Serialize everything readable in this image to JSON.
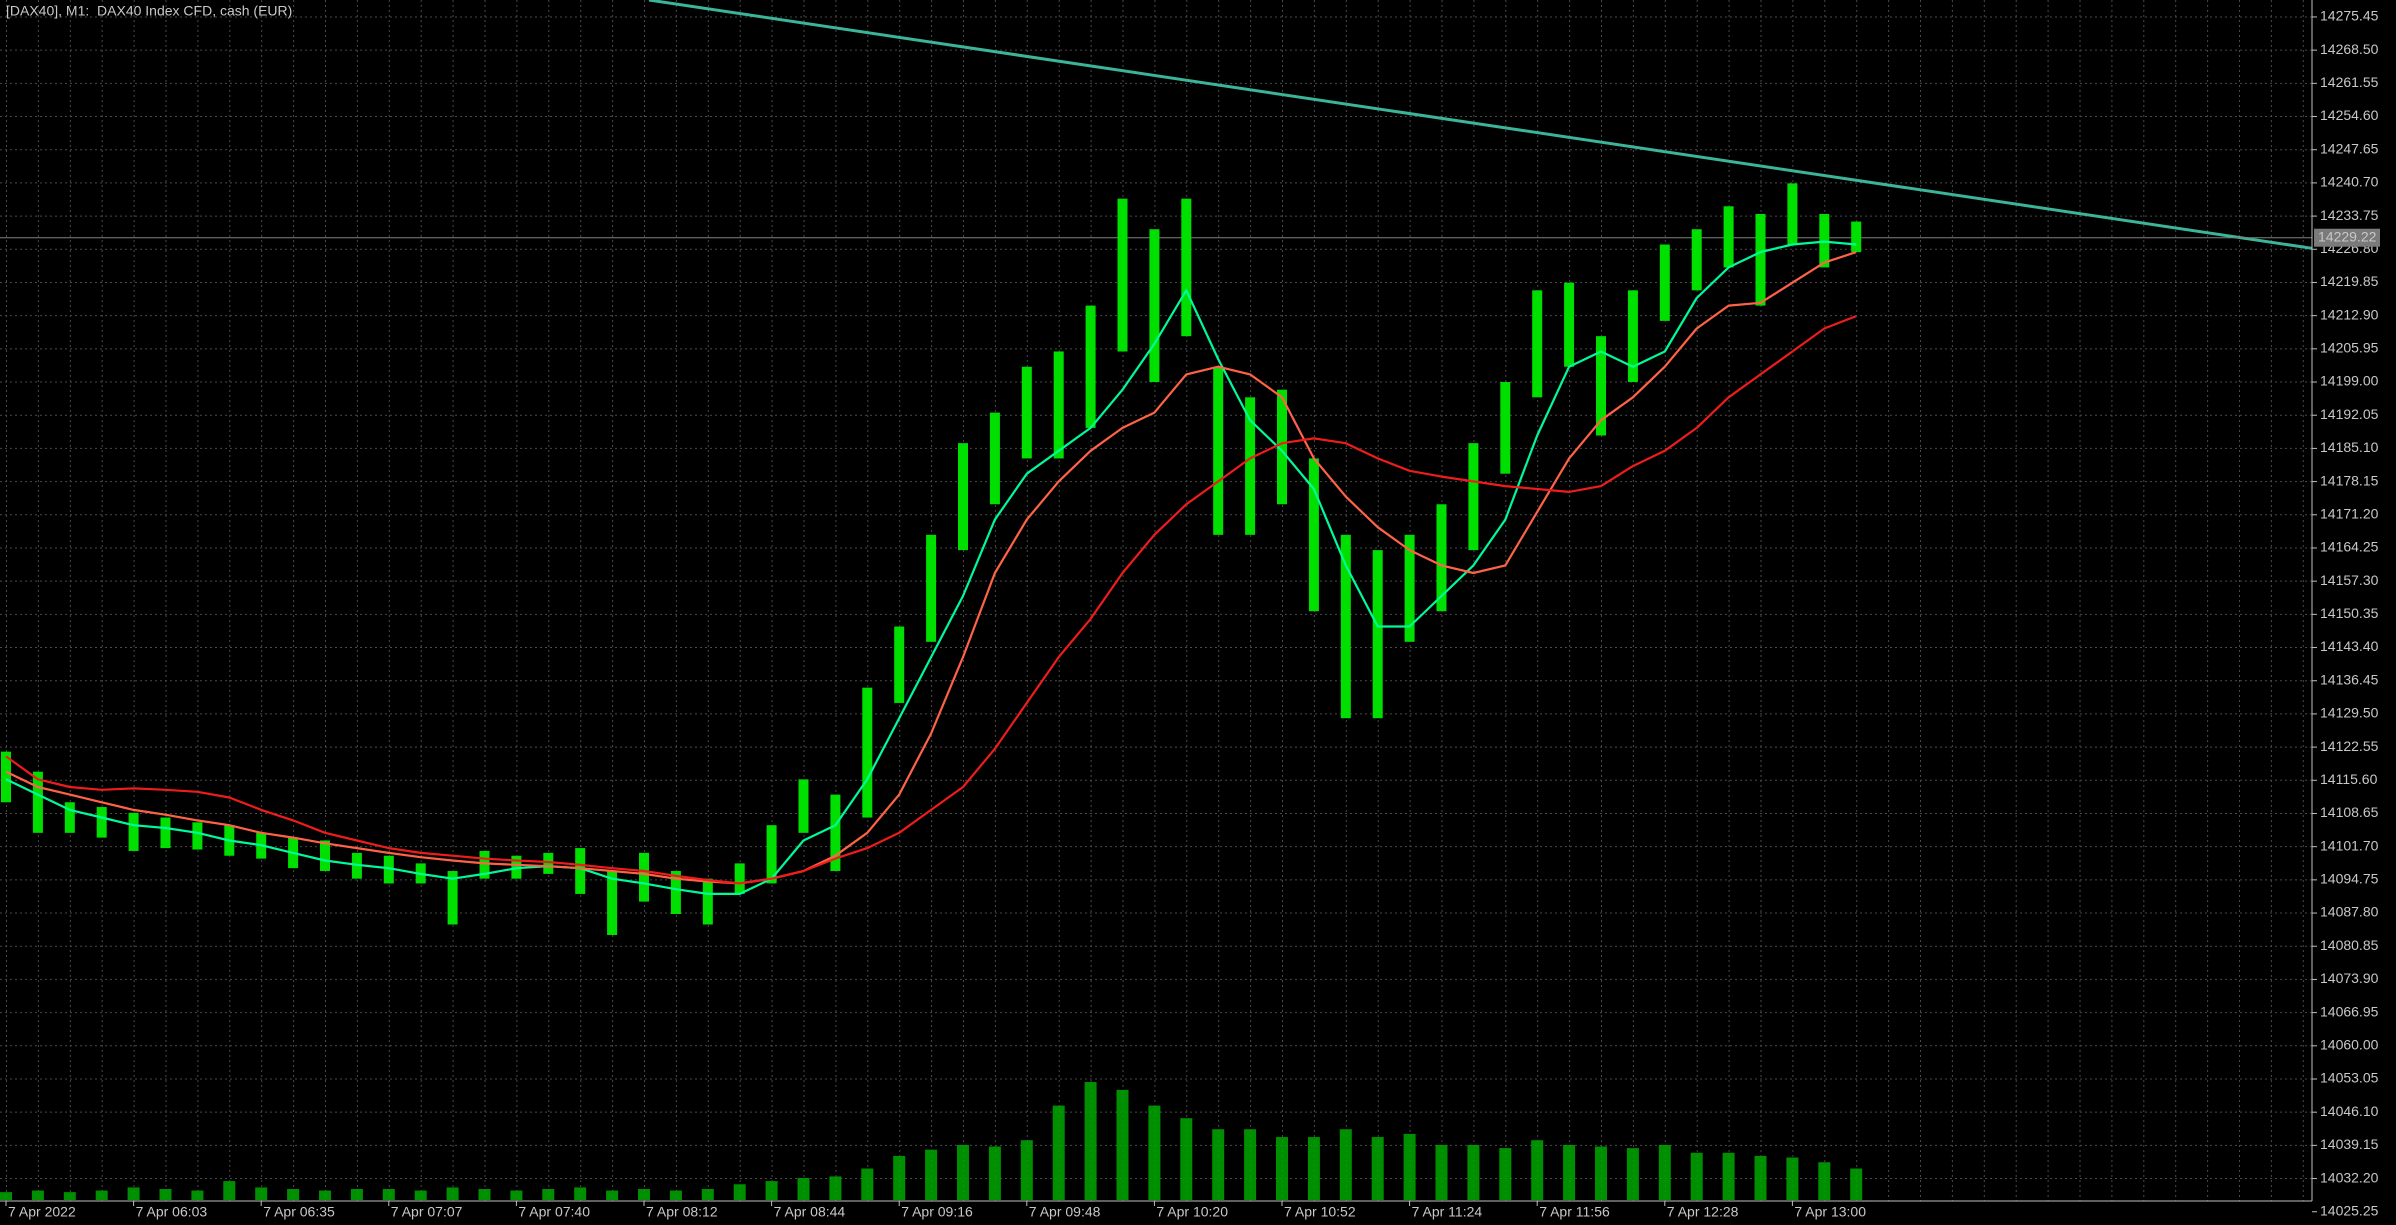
{
  "chart_data": {
    "type": "range-bar",
    "title": "[DAX40], M1:  DAX40 Index CFD, cash (EUR)",
    "categories": [
      "7 Apr 2022",
      null,
      null,
      null,
      "7 Apr 06:03",
      null,
      null,
      null,
      "7 Apr 06:35",
      null,
      null,
      null,
      "7 Apr 07:07",
      null,
      null,
      null,
      "7 Apr 07:40",
      null,
      null,
      null,
      "7 Apr 08:12",
      null,
      null,
      null,
      "7 Apr 08:44",
      null,
      null,
      null,
      "7 Apr 09:16",
      null,
      null,
      null,
      "7 Apr 09:48",
      null,
      null,
      null,
      "7 Apr 10:20",
      null,
      null,
      null,
      "7 Apr 10:52",
      null,
      null,
      null,
      "7 Apr 11:24",
      null,
      null,
      null,
      "7 Apr 11:56",
      null,
      null,
      null,
      "7 Apr 12:28",
      null,
      null,
      null,
      "7 Apr 13:00",
      null,
      null
    ],
    "color": "#00e000",
    "high": [
      14121.6,
      14117.4,
      14111.0,
      14110.0,
      14108.8,
      14107.8,
      14106.8,
      14106.2,
      14104.6,
      14103.6,
      14103.0,
      14100.4,
      14099.8,
      14098.2,
      14096.6,
      14100.8,
      14099.8,
      14100.4,
      14101.4,
      14096.6,
      14100.4,
      14096.6,
      14095.0,
      14098.2,
      14106.2,
      14115.8,
      14112.6,
      14135.0,
      14147.8,
      14167.0,
      14186.2,
      14192.6,
      14202.2,
      14205.4,
      14215.0,
      14237.4,
      14231.0,
      14237.4,
      14202.2,
      14195.8,
      14197.4,
      14183.0,
      14167.0,
      14163.8,
      14167.0,
      14173.4,
      14186.2,
      14199.0,
      14218.2,
      14219.8,
      14208.6,
      14218.2,
      14227.8,
      14231.0,
      14235.8,
      14234.2,
      14240.6,
      14234.2,
      14232.6
    ],
    "low": [
      14111.0,
      14104.6,
      14104.6,
      14103.6,
      14100.8,
      14101.4,
      14101.1,
      14099.8,
      14099.2,
      14097.2,
      14096.6,
      14095.0,
      14094.0,
      14094.0,
      14085.4,
      14095.0,
      14095.0,
      14096.0,
      14091.8,
      14083.2,
      14090.2,
      14087.6,
      14085.4,
      14091.8,
      14094.0,
      14104.6,
      14096.6,
      14107.8,
      14131.8,
      14144.6,
      14163.8,
      14173.4,
      14183.0,
      14183.0,
      14189.4,
      14205.4,
      14199.0,
      14208.6,
      14167.0,
      14167.0,
      14173.4,
      14151.0,
      14128.6,
      14128.6,
      14144.6,
      14151.0,
      14163.8,
      14179.8,
      14195.8,
      14202.2,
      14187.8,
      14199.0,
      14211.8,
      14218.2,
      14223.0,
      14215.0,
      14227.8,
      14223.0,
      14226.2
    ],
    "series": [
      {
        "color": "#00fa9a",
        "values": [
          14115.8,
          14112.6,
          14109.4,
          14107.8,
          14106.2,
          14105.6,
          14104.6,
          14103.0,
          14102.0,
          14100.4,
          14098.8,
          14097.9,
          14097.2,
          14096.0,
          14095.0,
          14096.0,
          14097.2,
          14097.6,
          14097.2,
          14095.0,
          14094.0,
          14092.8,
          14091.8,
          14091.8,
          14095.0,
          14103.0,
          14106.2,
          14115.8,
          14128.6,
          14141.4,
          14154.2,
          14170.2,
          14179.8,
          14184.6,
          14189.4,
          14197.4,
          14207.0,
          14218.2,
          14203.8,
          14191.0,
          14184.6,
          14176.6,
          14160.6,
          14147.8,
          14147.8,
          14154.2,
          14160.6,
          14170.2,
          14187.8,
          14202.2,
          14205.4,
          14202.2,
          14205.4,
          14216.6,
          14223.0,
          14226.2,
          14227.8,
          14228.4,
          14227.8
        ]
      },
      {
        "color": "#ff6347",
        "values": [
          14117.4,
          14114.2,
          14112.6,
          14111.0,
          14109.4,
          14108.4,
          14107.2,
          14106.2,
          14104.6,
          14103.6,
          14102.4,
          14101.4,
          14100.4,
          14099.5,
          14098.8,
          14098.2,
          14097.9,
          14097.6,
          14097.2,
          14096.6,
          14096.0,
          14095.0,
          14094.4,
          14094.0,
          14095.0,
          14096.6,
          14099.8,
          14104.6,
          14112.6,
          14125.4,
          14141.4,
          14159.0,
          14170.2,
          14178.2,
          14184.6,
          14189.4,
          14192.6,
          14200.6,
          14202.2,
          14200.6,
          14195.8,
          14183.0,
          14175.0,
          14168.6,
          14163.8,
          14160.6,
          14159.0,
          14160.6,
          14171.8,
          14183.0,
          14191.0,
          14195.8,
          14202.2,
          14210.2,
          14215.0,
          14215.6,
          14219.8,
          14224.0,
          14226.2
        ]
      },
      {
        "color": "#ee1c1c",
        "values": [
          14120.6,
          14115.8,
          14114.2,
          14113.6,
          14113.9,
          14113.6,
          14113.2,
          14112.0,
          14109.4,
          14107.2,
          14104.6,
          14103.0,
          14101.4,
          14100.4,
          14099.8,
          14099.2,
          14098.8,
          14098.5,
          14097.9,
          14097.2,
          14096.6,
          14095.6,
          14094.7,
          14094.0,
          14095.0,
          14096.6,
          14099.2,
          14101.4,
          14104.6,
          14109.4,
          14114.2,
          14122.2,
          14131.8,
          14141.4,
          14149.4,
          14159.0,
          14167.0,
          14173.4,
          14178.2,
          14183.0,
          14186.2,
          14187.2,
          14186.2,
          14183.0,
          14180.4,
          14179.2,
          14178.2,
          14177.2,
          14176.6,
          14176.0,
          14177.2,
          14181.4,
          14184.6,
          14189.4,
          14195.8,
          14200.6,
          14205.4,
          14210.2,
          14212.8
        ]
      }
    ],
    "volume": [
      5,
      6,
      5,
      6,
      8,
      7,
      6,
      12,
      8,
      7,
      6,
      7,
      7,
      6,
      8,
      7,
      6,
      7,
      8,
      6,
      7,
      6,
      7,
      10,
      12,
      14,
      15,
      20,
      28,
      32,
      35,
      34,
      38,
      60,
      75,
      70,
      60,
      52,
      45,
      45,
      40,
      40,
      45,
      40,
      42,
      35,
      35,
      33,
      38,
      35,
      34,
      33,
      35,
      30,
      30,
      28,
      27,
      24,
      20
    ],
    "volume_color": "#00a800",
    "trendline": {
      "values": [
        14279.0,
        14227.0
      ],
      "color": "#3cb49a"
    },
    "current_price": 14229.22,
    "ylim": [
      14027.5,
      14279
    ],
    "yticks": [
      14275.45,
      {
        "value": 14268.5,
        "label": "14268.50"
      },
      14261.55,
      {
        "value": 14254.6,
        "label": "14254.60"
      },
      14247.65,
      {
        "value": 14240.7,
        "label": "14240.70"
      },
      14233.75,
      {
        "value": 14226.8,
        "label": "14226.80"
      },
      14219.85,
      {
        "value": 14212.9,
        "label": "14212.90"
      },
      14205.95,
      {
        "value": 14199,
        "label": "14199.00"
      },
      14192.05,
      {
        "value": 14185.1,
        "label": "14185.10"
      },
      14178.15,
      {
        "value": 14171.2,
        "label": "14171.20"
      },
      14164.25,
      {
        "value": 14157.3,
        "label": "14157.30"
      },
      14150.35,
      {
        "value": 14143.4,
        "label": "14143.40"
      },
      14136.45,
      {
        "value": 14129.5,
        "label": "14129.50"
      },
      14122.55,
      {
        "value": 14115.6,
        "label": "14115.60"
      },
      14108.65,
      {
        "value": 14101.7,
        "label": "14101.70"
      },
      14094.75,
      {
        "value": 14087.8,
        "label": "14087.80"
      },
      14080.85,
      {
        "value": 14073.9,
        "label": "14073.90"
      },
      14066.95,
      {
        "value": 14060,
        "label": "14060.00"
      },
      14053.05,
      {
        "value": 14046.1,
        "label": "14046.10"
      },
      14039.15,
      {
        "value": 14032.2,
        "label": "14032.20"
      },
      14025.25
    ],
    "grid": true
  }
}
